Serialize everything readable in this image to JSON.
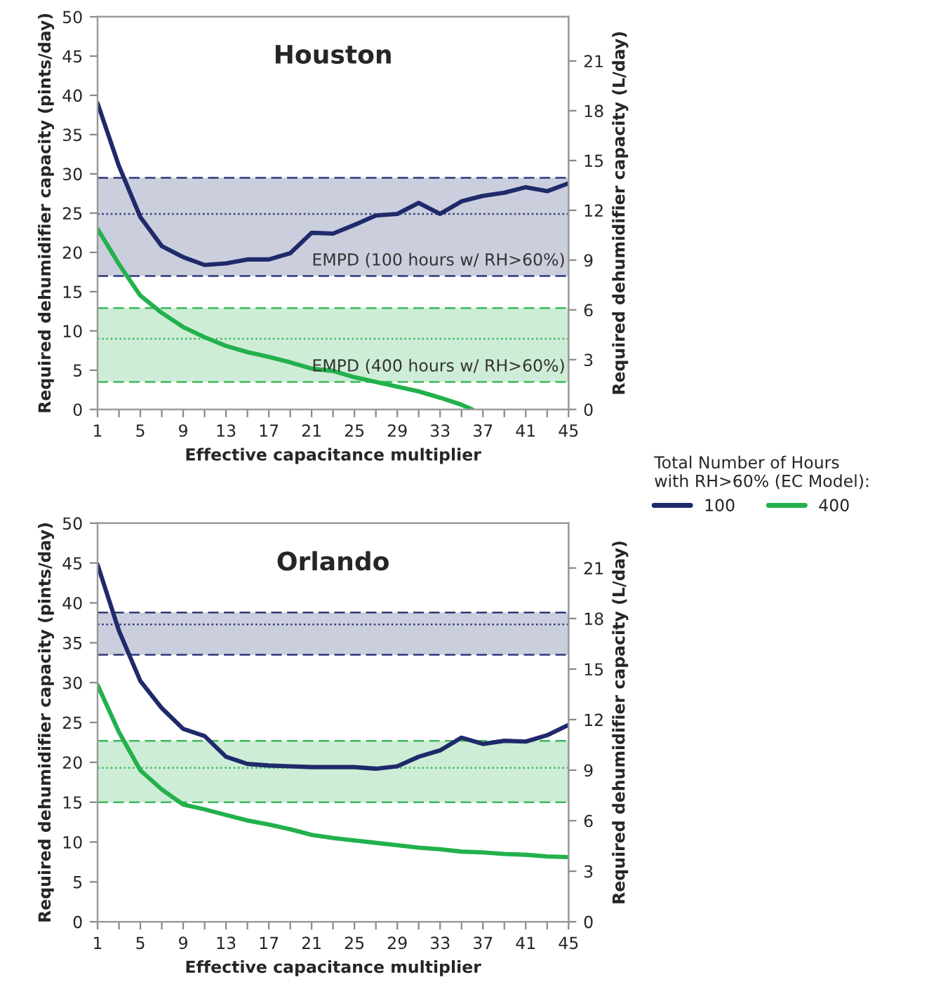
{
  "chart_data": [
    {
      "type": "line",
      "title": "Houston",
      "xlabel": "Effective capacitance multiplier",
      "ylabel": "Required dehumidifier capacity (pints/day)",
      "y2label": "Required dehumidifier capacity (L/day)",
      "x": [
        1,
        3,
        5,
        7,
        9,
        11,
        13,
        15,
        17,
        19,
        21,
        23,
        25,
        27,
        29,
        31,
        33,
        35,
        37,
        39,
        41,
        43,
        45
      ],
      "series": [
        {
          "name": "100",
          "color": "#1f2a6b",
          "values": [
            39,
            31,
            24.5,
            20.8,
            19.4,
            18.4,
            18.6,
            19.1,
            19.1,
            19.9,
            22.5,
            22.4,
            23.5,
            24.7,
            24.9,
            26.3,
            24.9,
            26.5,
            27.2,
            27.6,
            28.3,
            27.8,
            28.8
          ]
        },
        {
          "name": "400",
          "color": "#22b14c",
          "x": [
            1,
            3,
            5,
            7,
            9,
            11,
            13,
            15,
            17,
            19,
            21,
            23,
            25,
            27,
            29,
            31,
            33,
            35,
            36
          ],
          "values": [
            23,
            18.5,
            14.5,
            12.3,
            10.5,
            9.2,
            8.1,
            7.3,
            6.7,
            6.0,
            5.2,
            4.9,
            4.1,
            3.5,
            2.9,
            2.3,
            1.5,
            0.6,
            0
          ]
        }
      ],
      "bands": [
        {
          "axis": "y",
          "from": 17,
          "to": 29.5,
          "label": "EMPD (100 hours w/ RH>60%)",
          "color": "#2e3a78"
        },
        {
          "axis": "y",
          "from": 3.5,
          "to": 12.9,
          "label": "EMPD (400 hours w/ RH>60%)",
          "color": "#3cb95a"
        }
      ],
      "ref_lines": [
        {
          "axis": "y",
          "value": 17,
          "color": "#2e3a78",
          "line_style": "dashed"
        },
        {
          "axis": "y",
          "value": 29.5,
          "color": "#2e3a78",
          "line_style": "dashed"
        },
        {
          "axis": "y",
          "value": 24.9,
          "color": "#2e3a78",
          "line_style": "dotted"
        },
        {
          "axis": "y",
          "value": 3.5,
          "color": "#3cb95a",
          "line_style": "dashed"
        },
        {
          "axis": "y",
          "value": 12.9,
          "color": "#3cb95a",
          "line_style": "dashed"
        },
        {
          "axis": "y",
          "value": 9,
          "color": "#3cb95a",
          "line_style": "dotted"
        }
      ],
      "xlim": [
        1,
        45
      ],
      "xticks": [
        1,
        {
          "value": 3,
          "label": null
        },
        5,
        {
          "value": 7,
          "label": null
        },
        9,
        {
          "value": 11,
          "label": null
        },
        13,
        {
          "value": 15,
          "label": null
        },
        17,
        {
          "value": 19,
          "label": null
        },
        21,
        {
          "value": 23,
          "label": null
        },
        25,
        {
          "value": 27,
          "label": null
        },
        29,
        {
          "value": 31,
          "label": null
        },
        33,
        {
          "value": 35,
          "label": null
        },
        37,
        {
          "value": 39,
          "label": null
        },
        41,
        {
          "value": 43,
          "label": null
        },
        45
      ],
      "ylim": [
        0,
        50
      ],
      "yticks": [
        0,
        5,
        10,
        15,
        20,
        25,
        30,
        35,
        40,
        45,
        50
      ],
      "y2lim": [
        0,
        23.66
      ],
      "y2ticks": [
        0,
        3,
        6,
        9,
        12,
        15,
        18,
        21
      ],
      "grid": false,
      "legend": "right",
      "legend_title": "Total Number of Hours\nwith RH>60% (EC Model):"
    },
    {
      "type": "line",
      "title": "Orlando",
      "xlabel": "Effective capacitance multiplier",
      "ylabel": "Required dehumidifier capacity (pints/day)",
      "y2label": "Required dehumidifier capacity (L/day)",
      "x": [
        1,
        3,
        5,
        7,
        9,
        11,
        13,
        15,
        17,
        19,
        21,
        23,
        25,
        27,
        29,
        31,
        33,
        35,
        37,
        39,
        41,
        43,
        45
      ],
      "series": [
        {
          "color": "#1f2a6b",
          "values": [
            44.8,
            36.5,
            30.2,
            26.8,
            24.2,
            23.3,
            20.7,
            19.8,
            19.6,
            19.5,
            19.4,
            19.4,
            19.4,
            19.2,
            19.5,
            20.7,
            21.5,
            23.1,
            22.3,
            22.7,
            22.6,
            23.4,
            24.7
          ]
        },
        {
          "color": "#22b14c",
          "values": [
            29.7,
            23.8,
            19.0,
            16.6,
            14.7,
            14.1,
            13.4,
            12.7,
            12.2,
            11.6,
            10.9,
            10.5,
            10.2,
            9.9,
            9.6,
            9.3,
            9.1,
            8.8,
            8.7,
            8.5,
            8.4,
            8.2,
            8.1
          ]
        }
      ],
      "bands": [
        {
          "axis": "y",
          "from": 33.5,
          "to": 38.8,
          "color": "#2e3a78"
        },
        {
          "axis": "y",
          "from": 15.0,
          "to": 22.7,
          "color": "#3cb95a"
        }
      ],
      "ref_lines": [
        {
          "axis": "y",
          "value": 33.5,
          "color": "#2e3a78",
          "line_style": "dashed"
        },
        {
          "axis": "y",
          "value": 38.8,
          "color": "#2e3a78",
          "line_style": "dashed"
        },
        {
          "axis": "y",
          "value": 37.3,
          "color": "#2e3a78",
          "line_style": "dotted"
        },
        {
          "axis": "y",
          "value": 15.0,
          "color": "#3cb95a",
          "line_style": "dashed"
        },
        {
          "axis": "y",
          "value": 22.7,
          "color": "#3cb95a",
          "line_style": "dashed"
        },
        {
          "axis": "y",
          "value": 19.3,
          "color": "#3cb95a",
          "line_style": "dotted"
        }
      ],
      "xlim": [
        1,
        45
      ],
      "xticks": [
        1,
        {
          "value": 3,
          "label": null
        },
        5,
        {
          "value": 7,
          "label": null
        },
        9,
        {
          "value": 11,
          "label": null
        },
        13,
        {
          "value": 15,
          "label": null
        },
        17,
        {
          "value": 19,
          "label": null
        },
        21,
        {
          "value": 23,
          "label": null
        },
        25,
        {
          "value": 27,
          "label": null
        },
        29,
        {
          "value": 31,
          "label": null
        },
        33,
        {
          "value": 35,
          "label": null
        },
        37,
        {
          "value": 39,
          "label": null
        },
        41,
        {
          "value": 43,
          "label": null
        },
        45
      ],
      "ylim": [
        0,
        50
      ],
      "yticks": [
        0,
        5,
        10,
        15,
        20,
        25,
        30,
        35,
        40,
        45,
        50
      ],
      "y2lim": [
        0,
        23.66
      ],
      "y2ticks": [
        0,
        3,
        6,
        9,
        12,
        15,
        18,
        21
      ],
      "grid": false,
      "legend": false
    }
  ]
}
